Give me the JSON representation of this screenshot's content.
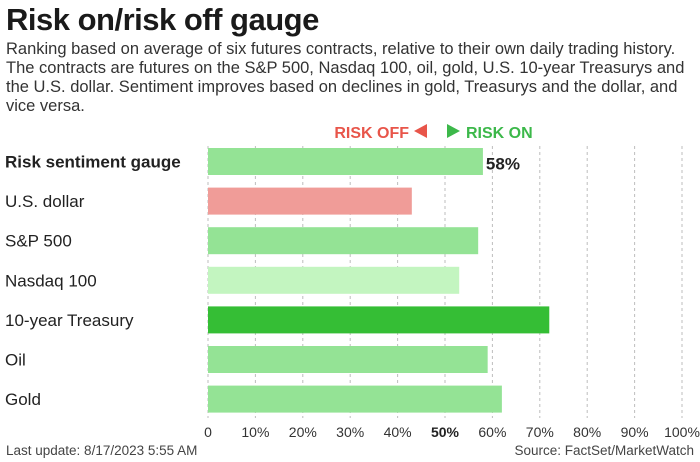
{
  "header": {
    "title": "Risk on/risk off gauge",
    "subtitle": "Ranking based on average of six futures contracts, relative to their own daily trading history. The contracts are futures on the S&P 500, Nasdaq 100, oil, gold, U.S. 10-year Treasurys and the U.S. dollar. Sentiment improves based on declines in gold, Treasurys and the dollar, and vice versa."
  },
  "legend": {
    "risk_off": "RISK OFF",
    "risk_on": "RISK ON",
    "risk_off_color": "#e8554a",
    "risk_on_color": "#3cb84a",
    "risk_off_icon": "left-triangle-icon",
    "risk_on_icon": "right-triangle-icon"
  },
  "chart_data": {
    "type": "bar",
    "orientation": "horizontal",
    "title": "Risk on/risk off gauge",
    "categories": [
      "Risk sentiment gauge",
      "U.S. dollar",
      "S&P 500",
      "Nasdaq 100",
      "10-year Treasury",
      "Oil",
      "Gold"
    ],
    "values": [
      58,
      43,
      57,
      53,
      72,
      59,
      62
    ],
    "colors": [
      "#94e395",
      "#f09c98",
      "#94e395",
      "#c3f5c0",
      "#35be35",
      "#94e395",
      "#94e395"
    ],
    "value_labels": [
      "58%",
      "",
      "",
      "",
      "",
      "",
      ""
    ],
    "xlim": [
      0,
      100
    ],
    "xticks": [
      "0",
      "10%",
      "20%",
      "30%",
      "40%",
      "50%",
      "60%",
      "70%",
      "80%",
      "90%",
      "100%"
    ],
    "highlighted_tick": "50%",
    "grid": "vertical dashed"
  },
  "footer": {
    "last_update": "Last update: 8/17/2023 5:55 AM",
    "source": "Source: FactSet/MarketWatch"
  }
}
